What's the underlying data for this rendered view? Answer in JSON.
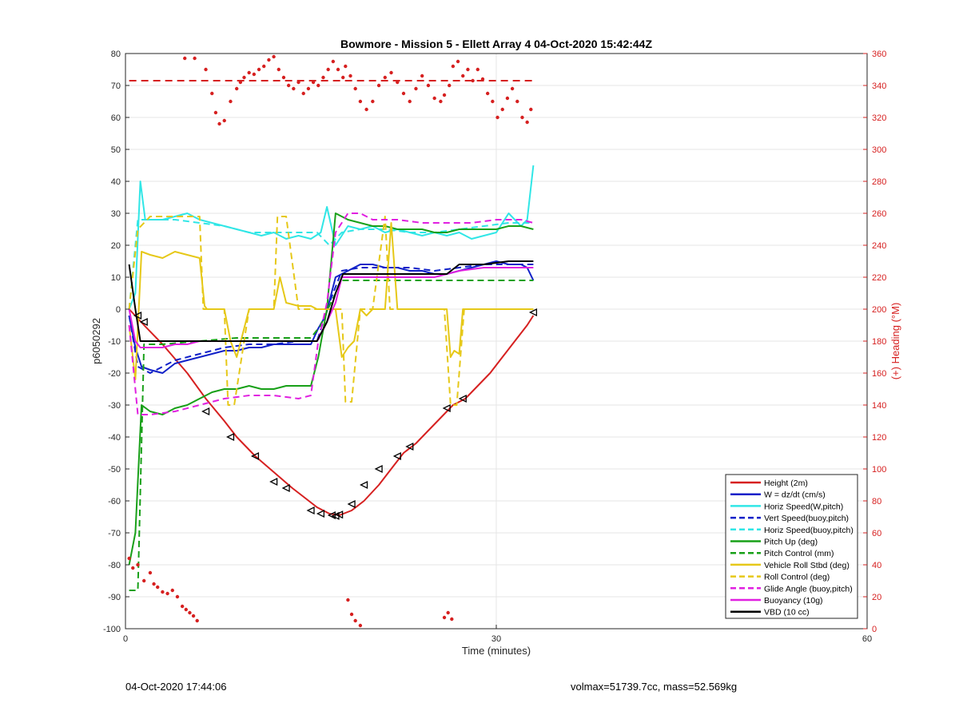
{
  "chart_data": {
    "type": "line",
    "title": "Bowmore - Mission 5 - Ellett Array 4 04-Oct-2020 15:42:44Z",
    "xlabel": "Time (minutes)",
    "ylabel": "p6050292",
    "y2label": "(+) Heading (°M)",
    "xlim": [
      0,
      60
    ],
    "ylim": [
      -100,
      80
    ],
    "y2lim": [
      0,
      360
    ],
    "xticks": [
      "0",
      "30",
      "60"
    ],
    "yticks": [
      "80",
      "70",
      "60",
      "50",
      "40",
      "30",
      "20",
      "10",
      "0",
      "-10",
      "-20",
      "-30",
      "-40",
      "-50",
      "-60",
      "-70",
      "-80",
      "-90",
      "-100"
    ],
    "y2ticks": [
      "360",
      "340",
      "320",
      "300",
      "280",
      "260",
      "240",
      "220",
      "200",
      "180",
      "160",
      "140",
      "120",
      "100",
      "80",
      "60",
      "40",
      "20",
      "0"
    ],
    "grid": true,
    "legend_position": "bottom-right",
    "colors": {
      "red": "#d62020",
      "blue": "#1020c8",
      "cyan": "#30e6e6",
      "green": "#18a018",
      "yellow": "#e6c818",
      "magenta": "#e020e0",
      "black": "#000000",
      "axis_right": "#d62020"
    },
    "legend": [
      {
        "name": "Height (2m)",
        "color": "#d62020",
        "dash": false
      },
      {
        "name": "W = dz/dt (cm/s)",
        "color": "#1020c8",
        "dash": false
      },
      {
        "name": "Horiz Speed(W,pitch)",
        "color": "#30e6e6",
        "dash": false
      },
      {
        "name": "Vert Speed(buoy,pitch)",
        "color": "#1020c8",
        "dash": true
      },
      {
        "name": "Horiz Speed(buoy,pitch)",
        "color": "#30e6e6",
        "dash": true
      },
      {
        "name": "Pitch Up (deg)",
        "color": "#18a018",
        "dash": false
      },
      {
        "name": "Pitch Control (mm)",
        "color": "#18a018",
        "dash": true
      },
      {
        "name": "Vehicle Roll Stbd (deg)",
        "color": "#e6c818",
        "dash": false
      },
      {
        "name": "Roll Control (deg)",
        "color": "#e6c818",
        "dash": true
      },
      {
        "name": "Glide Angle (buoy,pitch)",
        "color": "#e020e0",
        "dash": true
      },
      {
        "name": "Buoyancy (10g)",
        "color": "#e020e0",
        "dash": false
      },
      {
        "name": "VBD (10 cc)",
        "color": "#000000",
        "dash": false
      }
    ],
    "series": [
      {
        "name": "Height (2m)",
        "color": "#d62020",
        "dash": false,
        "x": [
          0.3,
          1.5,
          3,
          5,
          6.5,
          8,
          9,
          10.5,
          12,
          13.5,
          14.5,
          15.5,
          16.5,
          17.3,
          18.3,
          19.3,
          20.5,
          21.5,
          22.5,
          23.5,
          24.5,
          25.5,
          26.5,
          27.5,
          28.5,
          29.5,
          30.5,
          31.5,
          32.5,
          33
        ],
        "y": [
          0,
          -5,
          -11,
          -20,
          -28,
          -35,
          -40,
          -46,
          -51,
          -56,
          -59,
          -62,
          -64,
          -64.5,
          -63,
          -60,
          -55,
          -50,
          -45,
          -42,
          -38,
          -34,
          -30,
          -28,
          -24,
          -20,
          -15,
          -10,
          -5,
          -2
        ]
      },
      {
        "name": "W = dz/dt (cm/s)",
        "color": "#1020c8",
        "dash": false,
        "x": [
          0.3,
          0.8,
          1.3,
          2,
          3,
          4,
          5,
          6,
          7,
          8,
          9,
          10,
          11,
          12,
          13,
          14,
          15,
          15.6,
          16.2,
          17,
          18,
          19,
          20,
          21,
          22,
          23,
          24,
          25,
          26,
          27,
          28,
          29,
          30,
          31,
          32,
          32.5,
          33
        ],
        "y": [
          -2,
          -12,
          -18,
          -19,
          -20,
          -17,
          -16,
          -15,
          -14,
          -13,
          -13,
          -12,
          -12,
          -11,
          -11,
          -11,
          -11,
          -6,
          -2,
          10,
          12,
          14,
          14,
          13,
          13,
          12,
          12,
          11,
          11,
          12,
          13,
          14,
          15,
          14,
          14,
          13,
          9
        ]
      },
      {
        "name": "Horiz Speed(W,pitch)",
        "color": "#30e6e6",
        "dash": false,
        "x": [
          0.3,
          0.8,
          1.2,
          1.6,
          2,
          3,
          4,
          5,
          6,
          7,
          8,
          9,
          10,
          11,
          12,
          13,
          14,
          15,
          15.8,
          16.3,
          17,
          18,
          19,
          20,
          21,
          22,
          23,
          24,
          25,
          26,
          27,
          28,
          29,
          30,
          31,
          32,
          32.5,
          33
        ],
        "y": [
          0,
          5,
          40,
          28,
          28,
          28,
          29,
          30,
          28,
          27,
          26,
          25,
          24,
          23,
          24,
          22,
          23,
          22,
          24,
          32,
          20,
          26,
          25,
          26,
          24,
          25,
          24,
          23,
          24,
          23,
          24,
          22,
          23,
          24,
          30,
          26,
          28,
          45
        ]
      },
      {
        "name": "Vert Speed(buoy,pitch)",
        "color": "#1020c8",
        "dash": true,
        "x": [
          0.3,
          1,
          2,
          4,
          6,
          8,
          10,
          12,
          14,
          15.5,
          16.5,
          17.5,
          19,
          21,
          23,
          25,
          27,
          29,
          31,
          33
        ],
        "y": [
          -2,
          -18,
          -20,
          -16,
          -14,
          -12,
          -11,
          -11,
          -10,
          -10,
          2,
          12,
          13,
          13,
          13,
          12,
          13,
          14,
          14,
          14
        ]
      },
      {
        "name": "Horiz Speed(buoy,pitch)",
        "color": "#30e6e6",
        "dash": true,
        "x": [
          0.3,
          1,
          2,
          4,
          6,
          8,
          10,
          12,
          14,
          15.5,
          16.5,
          17.5,
          19,
          21,
          23,
          25,
          27,
          29,
          31,
          33
        ],
        "y": [
          0,
          28,
          28,
          28,
          27,
          26,
          24,
          24,
          24,
          24,
          20,
          24,
          25,
          25,
          24,
          24,
          25,
          26,
          27,
          27
        ]
      },
      {
        "name": "Pitch Up (deg)",
        "color": "#18a018",
        "dash": false,
        "x": [
          0.3,
          0.8,
          1.3,
          2,
          3,
          4,
          5,
          6,
          7,
          8,
          9,
          10,
          11,
          12,
          13,
          14,
          15,
          15.6,
          16.3,
          17,
          18,
          19,
          20,
          21,
          22,
          23,
          24,
          25,
          26,
          27,
          28,
          29,
          30,
          31,
          32,
          33
        ],
        "y": [
          -80,
          -70,
          -30,
          -32,
          -33,
          -31,
          -30,
          -28,
          -26,
          -25,
          -25,
          -24,
          -25,
          -25,
          -24,
          -24,
          -24,
          -15,
          0,
          30,
          28,
          27,
          26,
          26,
          25,
          25,
          25,
          24,
          24,
          25,
          25,
          25,
          25,
          26,
          26,
          25
        ]
      },
      {
        "name": "Pitch Control (mm)",
        "color": "#18a018",
        "dash": true,
        "x": [
          0.3,
          1,
          1.5,
          3,
          6,
          9,
          12,
          15,
          15.8,
          16.5,
          17.5,
          20,
          25,
          30,
          33
        ],
        "y": [
          -88,
          -88,
          -11,
          -11,
          -10,
          -9,
          -9,
          -9,
          -5,
          1,
          9,
          9,
          9,
          9,
          9
        ]
      },
      {
        "name": "Vehicle Roll Stbd (deg)",
        "color": "#e6c818",
        "dash": false,
        "x": [
          0.3,
          0.8,
          1.3,
          2,
          3,
          4,
          5,
          6,
          6.4,
          6.6,
          7,
          8,
          8.5,
          9,
          10,
          11,
          12,
          12.5,
          13,
          14,
          15,
          15.5,
          16,
          17,
          17.5,
          18,
          18.5,
          19,
          19.5,
          20,
          21,
          21.5,
          22,
          23,
          24,
          25,
          26,
          26.3,
          26.6,
          27,
          27.3,
          28,
          29,
          30,
          31,
          32,
          33
        ],
        "y": [
          -5,
          -22,
          18,
          17,
          16,
          18,
          17,
          16,
          1,
          0,
          0,
          0,
          -10,
          -15,
          0,
          0,
          0,
          10,
          2,
          1,
          1,
          0,
          0,
          0,
          -15,
          -12,
          -10,
          0,
          -2,
          0,
          0,
          27,
          0,
          0,
          0,
          0,
          0,
          -15,
          -13,
          -14,
          0,
          0,
          0,
          0,
          0,
          0,
          0
        ]
      },
      {
        "name": "Roll Control (deg)",
        "color": "#e6c818",
        "dash": true,
        "x": [
          0.3,
          1,
          2,
          4,
          6,
          6.3,
          6.7,
          8,
          8.3,
          8.8,
          10,
          12,
          12.3,
          13,
          14,
          16,
          17.5,
          17.8,
          18.3,
          19,
          20,
          21,
          21.4,
          22,
          25,
          25.8,
          26.3,
          26.8,
          27.4,
          28,
          30,
          33
        ],
        "y": [
          0,
          25,
          29,
          29,
          29,
          0,
          0,
          0,
          -30,
          -30,
          0,
          0,
          29,
          29,
          0,
          0,
          0,
          -29,
          -29,
          0,
          0,
          29,
          0,
          0,
          0,
          0,
          -30,
          -30,
          0,
          0,
          0,
          0
        ]
      },
      {
        "name": "Glide Angle (buoy,pitch)",
        "color": "#e020e0",
        "dash": true,
        "x": [
          0.3,
          1,
          2,
          4,
          6,
          8,
          10,
          12,
          14,
          15,
          15.6,
          16.3,
          17,
          18,
          19,
          20,
          22,
          24,
          26,
          28,
          30,
          32,
          33
        ],
        "y": [
          -5,
          -33,
          -33,
          -32,
          -30,
          -28,
          -27,
          -27,
          -28,
          -27,
          -10,
          2,
          24,
          30,
          30,
          28,
          28,
          27,
          27,
          27,
          28,
          28,
          27
        ]
      },
      {
        "name": "Buoyancy (10g)",
        "color": "#e020e0",
        "dash": false,
        "x": [
          0.3,
          0.8,
          1.2,
          2,
          3,
          4,
          5,
          6,
          8,
          10,
          12,
          14,
          15.5,
          16.3,
          17,
          17.5,
          19,
          21,
          23,
          25,
          27,
          29,
          31,
          33
        ],
        "y": [
          0,
          -10,
          -12,
          -12,
          -12,
          -11,
          -11,
          -10,
          -10,
          -10,
          -10,
          -10,
          -10,
          -4,
          2,
          10,
          10,
          10,
          10,
          10,
          12,
          13,
          13,
          13
        ]
      },
      {
        "name": "VBD (10 cc)",
        "color": "#000000",
        "dash": false,
        "x": [
          0.3,
          0.8,
          1.2,
          2,
          4,
          6,
          8,
          10,
          12,
          14,
          15.5,
          16.3,
          17,
          17.6,
          19,
          21,
          23,
          25,
          26,
          27,
          29,
          31,
          33
        ],
        "y": [
          14,
          0,
          -10,
          -10,
          -10,
          -10,
          -10,
          -10,
          -10,
          -10,
          -10,
          -4,
          5,
          11,
          11,
          11,
          11,
          11,
          11,
          14,
          14,
          15,
          15
        ]
      }
    ],
    "heading_reference": {
      "name": "Heading reference",
      "color": "#d62020",
      "dash": true,
      "x": [
        0.3,
        33
      ],
      "y2": 343
    },
    "heading_points": {
      "color": "#d62020",
      "x": [
        0.3,
        0.6,
        1,
        1.5,
        2,
        2.3,
        2.6,
        3,
        3.4,
        3.8,
        4.2,
        4.6,
        4.9,
        5.2,
        5.5,
        5.8,
        4.8,
        5.6,
        6.5,
        7,
        7.3,
        7.6,
        8,
        8.5,
        9,
        9.3,
        9.6,
        10,
        10.4,
        10.8,
        11.2,
        11.6,
        12,
        12.4,
        12.8,
        13.2,
        13.6,
        14,
        14.4,
        14.8,
        15.2,
        15.6,
        16,
        16.4,
        16.8,
        17.2,
        17.6,
        17.8,
        18.2,
        18.6,
        19,
        19.5,
        20,
        20.5,
        21,
        21.5,
        22,
        22.5,
        23,
        23.5,
        24,
        24.5,
        25,
        25.5,
        25.8,
        26.2,
        26.5,
        26.9,
        27.3,
        27.7,
        28.1,
        28.5,
        28.9,
        29.3,
        29.7,
        30.1,
        30.5,
        30.9,
        31.3,
        31.7,
        32.1,
        32.5,
        32.8,
        18,
        18.3,
        18.6,
        19,
        25.8,
        26.1,
        26.4
      ],
      "y2": [
        44,
        38,
        40,
        30,
        35,
        28,
        26,
        23,
        22,
        24,
        20,
        14,
        12,
        10,
        8,
        5,
        357,
        357,
        350,
        335,
        323,
        316,
        318,
        330,
        338,
        342,
        345,
        348,
        347,
        350,
        352,
        356,
        358,
        350,
        345,
        340,
        338,
        342,
        335,
        338,
        342,
        340,
        345,
        350,
        355,
        350,
        345,
        352,
        346,
        338,
        330,
        325,
        330,
        340,
        345,
        348,
        342,
        335,
        330,
        338,
        346,
        340,
        332,
        330,
        334,
        340,
        352,
        355,
        346,
        350,
        343,
        350,
        344,
        335,
        330,
        320,
        325,
        332,
        338,
        330,
        320,
        317,
        325,
        18,
        9,
        5,
        2,
        7,
        10,
        6
      ]
    },
    "height_markers": {
      "x": [
        1,
        1.5,
        6.5,
        8.5,
        10.5,
        12,
        13,
        15,
        15.8,
        16.7,
        17,
        17.3,
        18.3,
        19.3,
        20.5,
        22,
        23,
        26,
        27.3,
        33
      ],
      "y": [
        -2,
        -4,
        -32,
        -40,
        -46,
        -54,
        -56,
        -63,
        -64,
        -64.5,
        -64.7,
        -64.3,
        -61,
        -55,
        -50,
        -46,
        -43,
        -31,
        -28,
        -1
      ]
    },
    "annotation_left": "04-Oct-2020 17:44:06",
    "annotation_right": "volmax=51739.7cc, mass=52.569kg"
  }
}
